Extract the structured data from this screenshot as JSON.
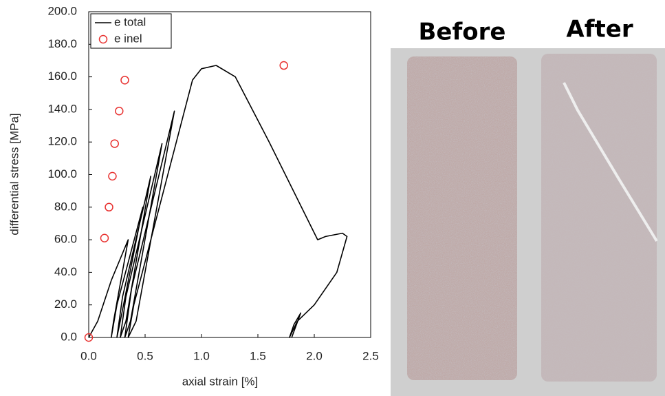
{
  "chart_data": {
    "type": "line",
    "xlabel": "axial strain [%]",
    "ylabel": "differential stress [MPa]",
    "xlim": [
      0,
      2.5
    ],
    "xticks": [
      {
        "value": 0,
        "label": "0.0"
      },
      0.5,
      {
        "value": 1,
        "label": "1.0"
      },
      1.5,
      {
        "value": 2,
        "label": "2.0"
      },
      2.5
    ],
    "ylim": [
      0,
      200
    ],
    "yticks": [
      {
        "value": 0,
        "label": "0.0"
      },
      {
        "value": 20,
        "label": "20.0"
      },
      {
        "value": 40,
        "label": "40.0"
      },
      {
        "value": 60,
        "label": "60.0"
      },
      {
        "value": 80,
        "label": "80.0"
      },
      {
        "value": 100,
        "label": "100.0"
      },
      {
        "value": 120,
        "label": "120.0"
      },
      {
        "value": 140,
        "label": "140.0"
      },
      {
        "value": 160,
        "label": "160.0"
      },
      {
        "value": 180,
        "label": "180.0"
      },
      {
        "value": 200,
        "label": "200.0"
      }
    ],
    "legend": "upper left",
    "grid": false,
    "series": [
      {
        "name": "e total",
        "type": "line",
        "color": "#000000",
        "x": [
          0,
          0.08,
          0.2,
          0.35,
          0.22,
          0.2,
          0.25,
          0.48,
          0.28,
          0.25,
          0.3,
          0.55,
          0.33,
          0.28,
          0.33,
          0.65,
          0.37,
          0.32,
          0.38,
          0.76,
          0.42,
          0.35,
          0.4,
          0.92,
          1.0,
          1.13,
          1.3,
          1.6,
          2.03,
          2.1,
          2.25,
          2.29,
          2.2,
          2.0,
          1.85,
          1.78,
          1.82,
          1.88,
          1.8
        ],
        "values": [
          0,
          10,
          35,
          60,
          10,
          0,
          20,
          80,
          10,
          0,
          25,
          99,
          10,
          0,
          25,
          119,
          10,
          0,
          30,
          139,
          10,
          0,
          20,
          158,
          165,
          167,
          160,
          120,
          60,
          62,
          64,
          62,
          40,
          20,
          10,
          0,
          8,
          15,
          0
        ]
      },
      {
        "name": "e inel",
        "type": "scatter",
        "color": "#e8312f",
        "x": [
          0,
          0.14,
          0.18,
          0.21,
          0.23,
          0.27,
          0.32,
          1.73
        ],
        "values": [
          0,
          61,
          80,
          99,
          119,
          139,
          158,
          167
        ]
      }
    ]
  },
  "photos": {
    "before": "Before",
    "after": "After"
  }
}
